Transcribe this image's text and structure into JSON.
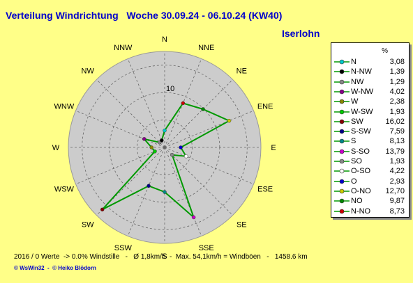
{
  "header": {
    "title": "Verteilung Windrichtung   Woche 30.09.24 - 06.10.24 (KW40)",
    "station": "Iserlohn"
  },
  "footer": {
    "stats": "2016 / 0 Werte  -> 0.0% Windstille   -   Ø 1,8km/h  -  Max. 54,1km/h = Windböen   -   1458.6 km",
    "credit": "© WsWin32  -  © Heiko Blödorn"
  },
  "chart_data": {
    "type": "radar",
    "directions": [
      "N",
      "NNE",
      "NE",
      "ENE",
      "E",
      "ESE",
      "SE",
      "SSE",
      "S",
      "SSW",
      "SW",
      "WSW",
      "W",
      "WNW",
      "NW",
      "NNW"
    ],
    "values": [
      3.08,
      8.73,
      9.87,
      12.7,
      2.93,
      4.22,
      1.93,
      13.79,
      8.13,
      7.59,
      16.02,
      1.93,
      2.38,
      4.02,
      1.29,
      1.39
    ],
    "ring_label": "10",
    "legend_unit": "%",
    "legend": [
      {
        "label": "N",
        "value": "3,08",
        "color": "#00cccc"
      },
      {
        "label": "N-NW",
        "value": "1,39",
        "color": "#000000"
      },
      {
        "label": "NW",
        "value": "1,29",
        "color": "#888888"
      },
      {
        "label": "W-NW",
        "value": "4,02",
        "color": "#880088"
      },
      {
        "label": "W",
        "value": "2,38",
        "color": "#888800"
      },
      {
        "label": "W-SW",
        "value": "1,93",
        "color": "#00cc00"
      },
      {
        "label": "SW",
        "value": "16,02",
        "color": "#880000"
      },
      {
        "label": "S-SW",
        "value": "7,59",
        "color": "#000088"
      },
      {
        "label": "S",
        "value": "8,13",
        "color": "#008888"
      },
      {
        "label": "S-SO",
        "value": "13,79",
        "color": "#cc00cc"
      },
      {
        "label": "SO",
        "value": "1,93",
        "color": "#888888"
      },
      {
        "label": "O-SO",
        "value": "4,22",
        "color": "#ffffff"
      },
      {
        "label": "O",
        "value": "2,93",
        "color": "#0000cc"
      },
      {
        "label": "O-NO",
        "value": "12,70",
        "color": "#cccc00"
      },
      {
        "label": "NO",
        "value": "9,87",
        "color": "#008800"
      },
      {
        "label": "N-NO",
        "value": "8,73",
        "color": "#cc0000"
      }
    ],
    "colors": {
      "line": "#009900",
      "disc": "#cccccc"
    }
  }
}
